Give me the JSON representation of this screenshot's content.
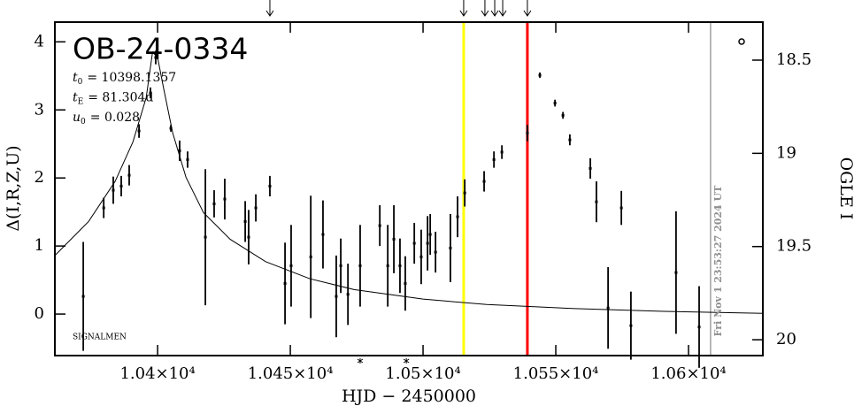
{
  "chart_data": {
    "type": "errorbar",
    "title": "OB-24-0334",
    "params": [
      {
        "symbol": "t",
        "sub": "0",
        "text": "= 10398.1357"
      },
      {
        "symbol": "t",
        "sub": "E",
        "text": "= 81.304d"
      },
      {
        "symbol": "u",
        "sub": "0",
        "text": "= 0.028"
      }
    ],
    "credit": "SIGNALMEN",
    "x_label": "HJD − 2450000",
    "y_label": "Δ(I,R,Z,U)",
    "y2_label": "OGLE I",
    "timestamp": "Fri Nov  1 23:53:27 2024 UT",
    "xlim": [
      10361.3,
      10628
    ],
    "xticks": [
      {
        "value": 10400,
        "label": "1.04×10⁴"
      },
      {
        "value": 10450,
        "label": "1.045×10⁴"
      },
      {
        "value": 10500,
        "label": "1.05×10⁴"
      },
      {
        "value": 10550,
        "label": "1.055×10⁴"
      },
      {
        "value": 10600,
        "label": "1.06×10⁴"
      }
    ],
    "ylim": [
      -0.61,
      4.29
    ],
    "yticks": [
      0,
      1,
      2,
      3,
      4
    ],
    "y2lim": [
      20.085,
      18.296
    ],
    "y2ticks": [
      18.5,
      19,
      19.5,
      20
    ],
    "x": [
      10372,
      10379.7,
      10383.3,
      10386.3,
      10389.3,
      10393,
      10397.3,
      10399.3,
      10405,
      10408.3,
      10411.3,
      10418,
      10421.3,
      10425.3,
      10433,
      10434.3,
      10437,
      10442.3,
      10448,
      10450.3,
      10457.7,
      10462.3,
      10467.3,
      10469,
      10471.7,
      10476.3,
      10483.7,
      10486.7,
      10489,
      10491.3,
      10493.3,
      10496.7,
      10499.3,
      10501.7,
      10502.7,
      10504.7,
      10510.3,
      10513,
      10515.7,
      10523,
      10526.7,
      10529.7,
      10539.3,
      10544,
      10549.7,
      10552.7,
      10555.3,
      10563,
      10565.3,
      10569.7,
      10574.7,
      10578.3,
      10595.3,
      10604
    ],
    "values": [
      0.26,
      1.56,
      1.82,
      1.88,
      2.04,
      2.69,
      3.25,
      3.77,
      2.73,
      2.4,
      2.27,
      1.13,
      1.62,
      1.69,
      1.36,
      1.13,
      1.56,
      1.88,
      0.45,
      0.71,
      0.84,
      1.17,
      0.26,
      0.71,
      0.29,
      0.71,
      1.3,
      0.71,
      1.1,
      0.71,
      0.45,
      1.04,
      0.84,
      1.04,
      1.17,
      0.91,
      0.97,
      1.43,
      1.78,
      1.95,
      2.27,
      2.38,
      2.66,
      3.51,
      3.1,
      2.92,
      2.56,
      2.14,
      1.65,
      0.09,
      1.56,
      -0.17,
      0.61,
      -0.19
    ],
    "errors": [
      0.8,
      0.15,
      0.2,
      0.15,
      0.15,
      0.1,
      0.08,
      0.1,
      0.05,
      0.15,
      0.12,
      1.0,
      0.2,
      0.3,
      0.3,
      0.4,
      0.2,
      0.15,
      0.6,
      0.6,
      0.9,
      0.5,
      0.6,
      0.4,
      0.45,
      0.6,
      0.3,
      0.6,
      0.5,
      0.4,
      0.4,
      0.3,
      0.4,
      0.4,
      0.3,
      0.3,
      0.5,
      0.3,
      0.2,
      0.15,
      0.12,
      0.1,
      0.12,
      0.04,
      0.05,
      0.05,
      0.08,
      0.15,
      0.3,
      0.6,
      0.25,
      0.5,
      0.9,
      0.6
    ],
    "model": {
      "x": [
        10361.3,
        10374,
        10384,
        10390.7,
        10395.7,
        10398.1,
        10400,
        10402.3,
        10405.7,
        10410.7,
        10417.3,
        10427.3,
        10440.7,
        10457.3,
        10474,
        10500,
        10524,
        10557.3,
        10590.7,
        10628
      ],
      "values": [
        0.86,
        1.36,
        1.95,
        2.53,
        3.18,
        3.85,
        3.77,
        3.31,
        2.66,
        2.01,
        1.49,
        1.1,
        0.77,
        0.52,
        0.36,
        0.22,
        0.14,
        0.08,
        0.04,
        0.01
      ]
    },
    "vlines": [
      {
        "x": 10515.3,
        "color": "#ffff00"
      },
      {
        "x": 10539.3,
        "color": "#ff0000"
      },
      {
        "x": 10608.3,
        "color": "#a0a0a0"
      }
    ],
    "arrows_x": [
      10442.3,
      10515.3,
      10523.3,
      10527,
      10530,
      10539.3
    ],
    "asterisks_x": [
      10476.3,
      10493.7
    ]
  }
}
